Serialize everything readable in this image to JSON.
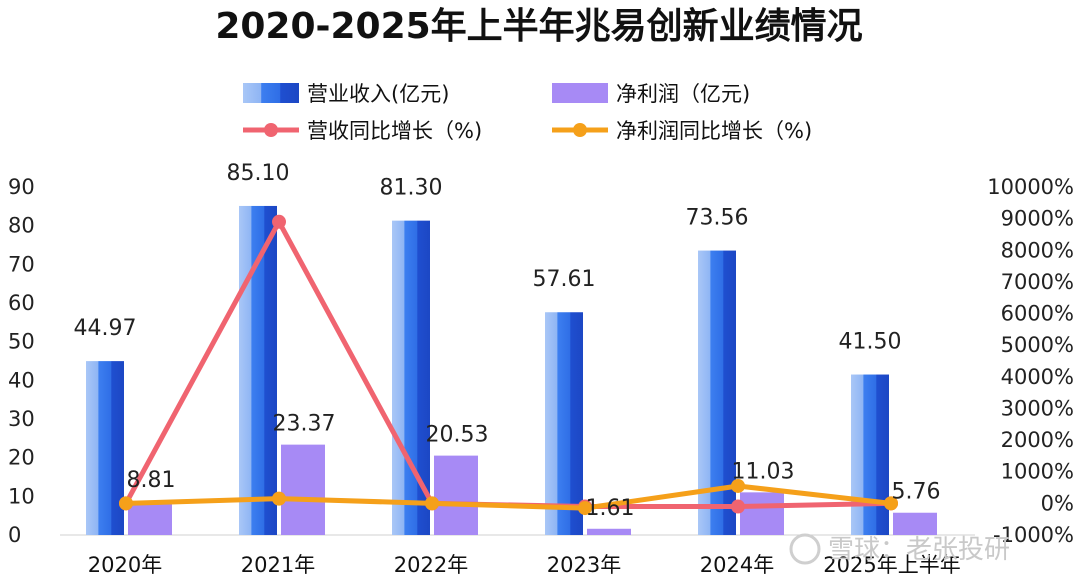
{
  "chart_data": {
    "type": "bar",
    "title": "2020-2025年上半年兆易创新业绩情况",
    "categories": [
      "2020年",
      "2021年",
      "2022年",
      "2023年",
      "2024年",
      "2025年上半年"
    ],
    "series": [
      {
        "name": "营业收入(亿元)",
        "kind": "bar",
        "axis": "left",
        "color": "#2f6ee6",
        "values": [
          44.97,
          85.1,
          81.3,
          57.61,
          73.56,
          41.5
        ],
        "labels": [
          "44.97",
          "85.10",
          "81.30",
          "57.61",
          "73.56",
          "41.50"
        ]
      },
      {
        "name": "净利润（亿元)",
        "kind": "bar",
        "axis": "left",
        "color": "#a78af5",
        "values": [
          8.81,
          23.37,
          20.53,
          1.61,
          11.03,
          5.76
        ],
        "labels": [
          "8.81",
          "23.37",
          "20.53",
          "1.61",
          "11.03",
          "5.76"
        ]
      },
      {
        "name": "营收同比增长（%)",
        "kind": "line",
        "axis": "right",
        "color": "#f06470",
        "values": [
          0,
          8900,
          0,
          -100,
          -100,
          0
        ]
      },
      {
        "name": "净利润同比增长（%)",
        "kind": "line",
        "axis": "right",
        "color": "#f5a01a",
        "values": [
          0,
          150,
          0,
          -150,
          550,
          0
        ]
      }
    ],
    "y_left": {
      "min": 0,
      "max": 90,
      "ticks": [
        "0",
        "10",
        "20",
        "30",
        "40",
        "50",
        "60",
        "70",
        "80",
        "90"
      ]
    },
    "y_right": {
      "min": -1000,
      "max": 10000,
      "ticks": [
        "-1000%",
        "0%",
        "1000%",
        "2000%",
        "3000%",
        "4000%",
        "5000%",
        "6000%",
        "7000%",
        "8000%",
        "9000%",
        "10000%"
      ]
    }
  },
  "watermark": {
    "text": "雪球：老张投研",
    "icon": "snowball-logo-icon"
  }
}
